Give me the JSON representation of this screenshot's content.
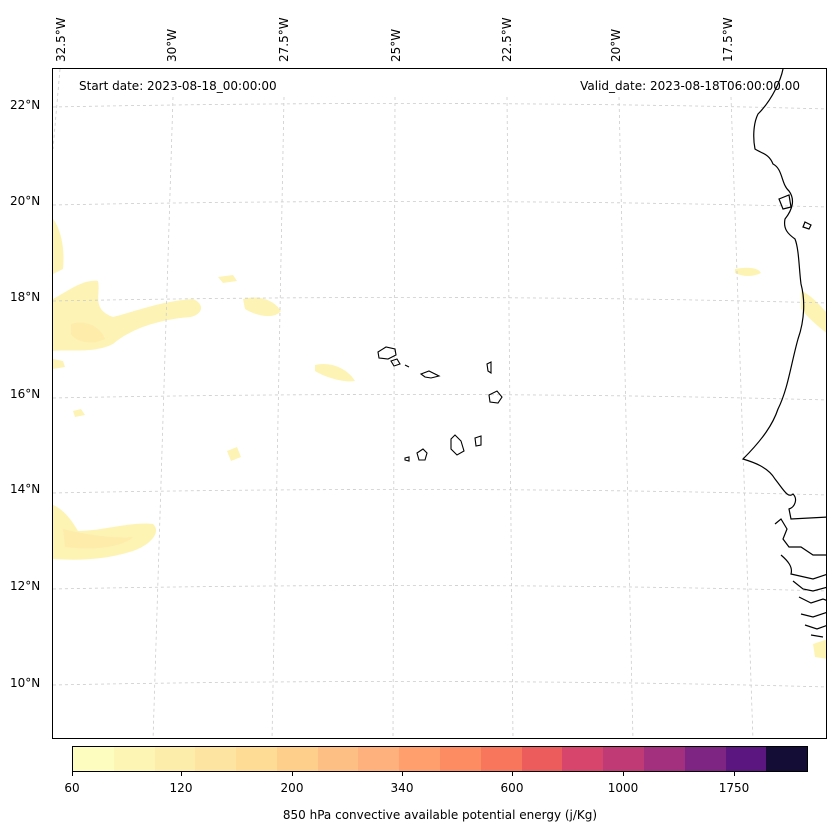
{
  "map": {
    "start_date": "Start date: 2023-08-18_00:00:00",
    "valid_date": "Valid_date: 2023-08-18T06:00:00.00",
    "lon_labels": [
      "32.5°W",
      "30°W",
      "27.5°W",
      "25°W",
      "22.5°W",
      "20°W",
      "17.5°W"
    ],
    "lat_labels": [
      "22°N",
      "20°N",
      "18°N",
      "16°N",
      "14°N",
      "12°N",
      "10°N"
    ],
    "gridline_color": "#cccccc",
    "coastline_color": "#000000",
    "icons": [
      "coastline-africa",
      "cape-verde-islands"
    ]
  },
  "colorbar": {
    "title": "850 hPa convective available potential energy (j/Kg)",
    "tick_labels": [
      "60",
      "120",
      "200",
      "340",
      "600",
      "1000",
      "1750"
    ],
    "colors": [
      "#fcfdbf",
      "#fcf5b3",
      "#fdedaa",
      "#fde5a1",
      "#fedc96",
      "#fecf8b",
      "#febf84",
      "#feb07d",
      "#fe9f6d",
      "#fd8c63",
      "#f8765c",
      "#ec5c5d",
      "#d8456c",
      "#c03a76",
      "#a3307e",
      "#7e2482",
      "#5c167f",
      "#140e36"
    ]
  }
}
